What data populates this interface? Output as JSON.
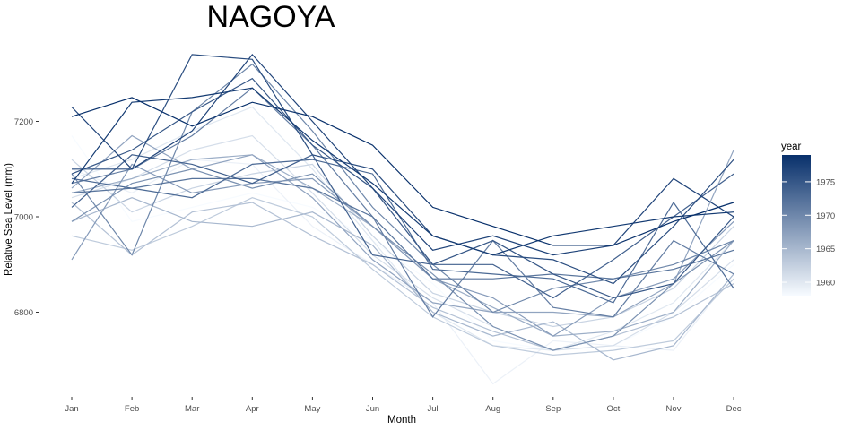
{
  "chart_data": {
    "type": "line",
    "title": "NAGOYA",
    "xlabel": "Month",
    "ylabel": "Relative Sea Level (mm)",
    "categories": [
      "Jan",
      "Feb",
      "Mar",
      "Apr",
      "May",
      "Jun",
      "Jul",
      "Aug",
      "Sep",
      "Oct",
      "Nov",
      "Dec"
    ],
    "yticks": [
      6800,
      7000,
      7200
    ],
    "ylim": [
      6620,
      7390
    ],
    "grid": false,
    "legend": {
      "title": "year",
      "position": "right",
      "type": "colorbar",
      "range": [
        1958,
        1979
      ],
      "ticks": [
        1960,
        1965,
        1970,
        1975
      ],
      "color_low": "#f7fbff",
      "color_high": "#08306b"
    },
    "series": [
      {
        "year": 1958,
        "values": [
          7170,
          6990,
          7020,
          7050,
          7020,
          6950,
          6860,
          6740,
          6720,
          6730,
          6790,
          6900
        ]
      },
      {
        "year": 1959,
        "values": [
          7100,
          7050,
          7120,
          7110,
          6980,
          6900,
          6820,
          6650,
          6740,
          6730,
          6720,
          6880
        ]
      },
      {
        "year": 1960,
        "values": [
          7080,
          7120,
          7180,
          7230,
          7100,
          6950,
          6800,
          6730,
          6720,
          6760,
          6820,
          6950
        ]
      },
      {
        "year": 1961,
        "values": [
          7040,
          7080,
          7140,
          7170,
          7050,
          6920,
          6830,
          6770,
          6720,
          6730,
          6800,
          6910
        ]
      },
      {
        "year": 1962,
        "values": [
          7120,
          7010,
          7060,
          7090,
          7110,
          6960,
          6840,
          6800,
          6770,
          6790,
          6850,
          6980
        ]
      },
      {
        "year": 1963,
        "values": [
          6960,
          6930,
          6980,
          7040,
          7000,
          6890,
          6790,
          6730,
          6710,
          6720,
          6740,
          6870
        ]
      },
      {
        "year": 1964,
        "values": [
          7030,
          6920,
          7010,
          7030,
          6960,
          6900,
          6810,
          6760,
          6720,
          6750,
          6790,
          6860
        ]
      },
      {
        "year": 1965,
        "values": [
          6990,
          7040,
          6990,
          6980,
          7010,
          6940,
          6800,
          6750,
          6780,
          6700,
          6730,
          6880
        ]
      },
      {
        "year": 1966,
        "values": [
          7050,
          7080,
          7120,
          7130,
          7060,
          6980,
          6870,
          6810,
          6750,
          6760,
          6800,
          6950
        ]
      },
      {
        "year": 1967,
        "values": [
          7060,
          7170,
          7100,
          7130,
          7040,
          6910,
          6820,
          6800,
          6800,
          6790,
          6860,
          7140
        ]
      },
      {
        "year": 1968,
        "values": [
          6910,
          7110,
          7050,
          7070,
          7080,
          6980,
          6870,
          6830,
          6750,
          6830,
          6870,
          6990
        ]
      },
      {
        "year": 1969,
        "values": [
          6990,
          7070,
          7100,
          7060,
          7090,
          6980,
          6880,
          6770,
          6720,
          6750,
          6860,
          6950
        ]
      },
      {
        "year": 1970,
        "values": [
          7090,
          6920,
          7220,
          7320,
          7180,
          7020,
          6900,
          6800,
          6850,
          6870,
          6900,
          6950
        ]
      },
      {
        "year": 1971,
        "values": [
          7070,
          7100,
          7170,
          7270,
          7150,
          7000,
          6790,
          6950,
          6810,
          6790,
          6950,
          6880
        ]
      },
      {
        "year": 1972,
        "values": [
          7050,
          7060,
          7080,
          7080,
          7060,
          7000,
          6870,
          6870,
          6880,
          6870,
          6890,
          6930
        ]
      },
      {
        "year": 1973,
        "values": [
          7080,
          7060,
          7040,
          7110,
          7120,
          7090,
          6890,
          6880,
          6870,
          6820,
          7030,
          6850
        ]
      },
      {
        "year": 1974,
        "values": [
          7020,
          7130,
          7110,
          7070,
          7130,
          6920,
          6900,
          6900,
          6830,
          6910,
          7000,
          7090
        ]
      },
      {
        "year": 1975,
        "values": [
          7090,
          7140,
          7220,
          7290,
          7150,
          7060,
          6900,
          6950,
          6880,
          6830,
          6860,
          7000
        ]
      },
      {
        "year": 1976,
        "values": [
          7100,
          7100,
          7340,
          7330,
          7130,
          7100,
          6960,
          6920,
          6910,
          6860,
          6980,
          7120
        ]
      },
      {
        "year": 1977,
        "values": [
          7230,
          7100,
          7180,
          7340,
          7200,
          7060,
          6930,
          6960,
          6920,
          6940,
          7080,
          7000
        ]
      },
      {
        "year": 1978,
        "values": [
          7070,
          7240,
          7250,
          7270,
          7160,
          7070,
          6960,
          6920,
          6960,
          6980,
          7000,
          7010
        ]
      },
      {
        "year": 1979,
        "values": [
          7210,
          7250,
          7190,
          7240,
          7210,
          7150,
          7020,
          6980,
          6940,
          6940,
          6990,
          7030
        ]
      }
    ]
  }
}
